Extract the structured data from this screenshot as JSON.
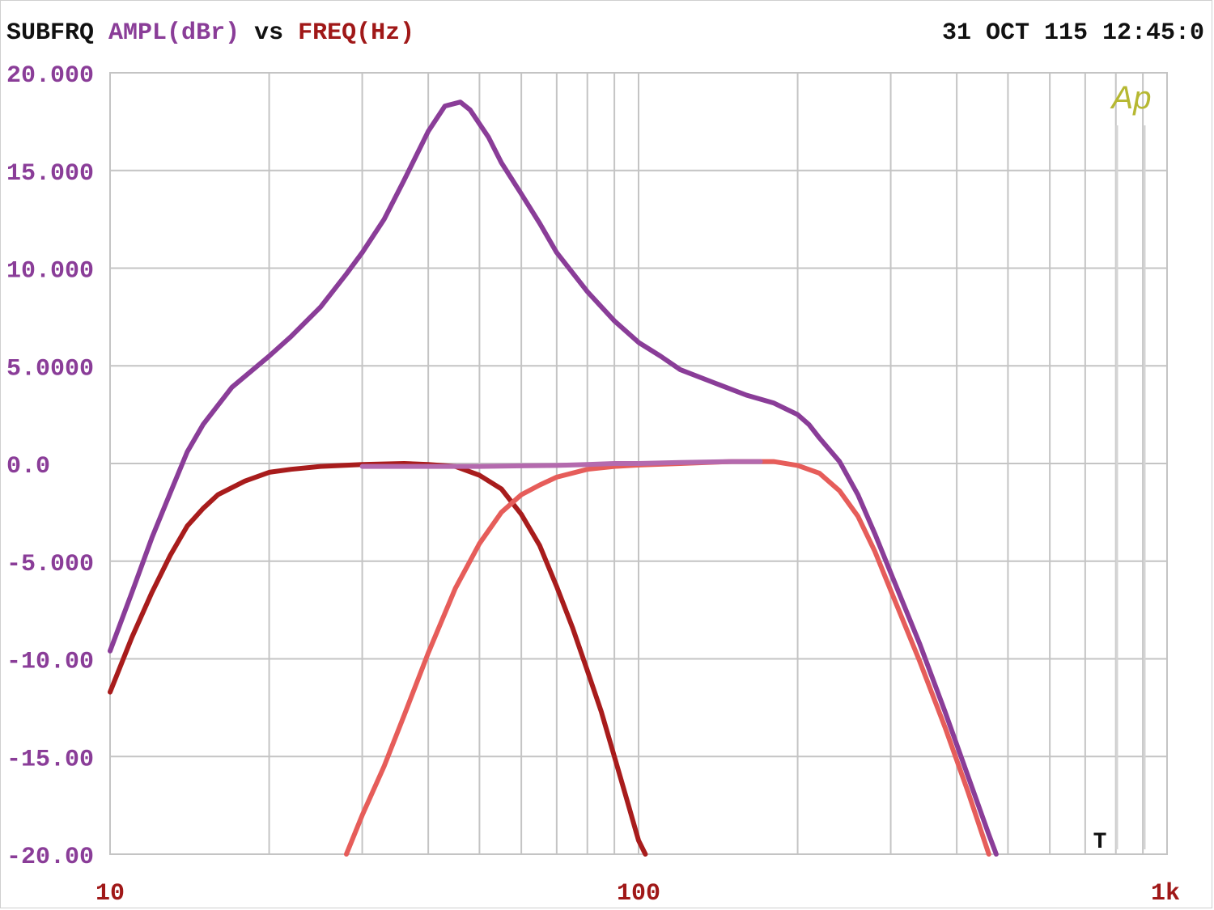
{
  "header": {
    "instrument": "SUBFRQ",
    "y_quantity": "AMPL(dBr)",
    "vs": "vs",
    "x_quantity": "FREQ(Hz)",
    "timestamp": "31 OCT 115 12:45:0"
  },
  "logo": "Ap",
  "marker": "T",
  "colors": {
    "instrument": "#111111",
    "y_quantity": "#8a3d98",
    "x_quantity": "#a01818",
    "y_ticks": "#8a3d98",
    "x_ticks": "#a01818",
    "grid": "#c4c4c4",
    "logo": "#b6b832"
  },
  "chart_data": {
    "type": "line",
    "x_scale": "log",
    "xlim": [
      10,
      1000
    ],
    "ylim": [
      -20,
      20
    ],
    "grid": true,
    "x_tick_labels": [
      {
        "value": 10,
        "label": "10"
      },
      {
        "value": 100,
        "label": "100"
      },
      {
        "value": 1000,
        "label": "1k"
      }
    ],
    "y_tick_labels": [
      {
        "value": 20,
        "label": "20.000"
      },
      {
        "value": 15,
        "label": "15.000"
      },
      {
        "value": 10,
        "label": "10.000"
      },
      {
        "value": 5,
        "label": "5.0000"
      },
      {
        "value": 0,
        "label": "0.0"
      },
      {
        "value": -5,
        "label": "-5.000"
      },
      {
        "value": -10,
        "label": "-10.00"
      },
      {
        "value": -15,
        "label": "-15.00"
      },
      {
        "value": -20,
        "label": "-20.00"
      }
    ],
    "series": [
      {
        "color": "#8a3d98",
        "points": [
          [
            10,
            -9.6
          ],
          [
            11,
            -6.6
          ],
          [
            12,
            -3.8
          ],
          [
            13,
            -1.5
          ],
          [
            14,
            0.6
          ],
          [
            15,
            2
          ],
          [
            17,
            3.9
          ],
          [
            20,
            5.5
          ],
          [
            22,
            6.5
          ],
          [
            25,
            8
          ],
          [
            28,
            9.7
          ],
          [
            30,
            10.8
          ],
          [
            33,
            12.5
          ],
          [
            36,
            14.5
          ],
          [
            40,
            17
          ],
          [
            43,
            18.3
          ],
          [
            46,
            18.5
          ],
          [
            48,
            18.1
          ],
          [
            52,
            16.7
          ],
          [
            55,
            15.4
          ],
          [
            60,
            13.8
          ],
          [
            65,
            12.3
          ],
          [
            70,
            10.8
          ],
          [
            80,
            8.8
          ],
          [
            90,
            7.3
          ],
          [
            100,
            6.2
          ],
          [
            110,
            5.5
          ],
          [
            120,
            4.8
          ],
          [
            140,
            4.1
          ],
          [
            160,
            3.5
          ],
          [
            180,
            3.1
          ],
          [
            200,
            2.5
          ],
          [
            210,
            2
          ],
          [
            220,
            1.3
          ],
          [
            240,
            0.1
          ],
          [
            260,
            -1.6
          ],
          [
            280,
            -3.6
          ],
          [
            300,
            -5.6
          ],
          [
            340,
            -9.2
          ],
          [
            380,
            -12.7
          ],
          [
            420,
            -16
          ],
          [
            460,
            -19
          ],
          [
            475,
            -20
          ]
        ]
      },
      {
        "color": "#a81c1c",
        "points": [
          [
            10,
            -11.7
          ],
          [
            11,
            -8.9
          ],
          [
            12,
            -6.6
          ],
          [
            13,
            -4.7
          ],
          [
            14,
            -3.2
          ],
          [
            15,
            -2.3
          ],
          [
            16,
            -1.6
          ],
          [
            18,
            -0.9
          ],
          [
            20,
            -0.45
          ],
          [
            22,
            -0.3
          ],
          [
            25,
            -0.15
          ],
          [
            30,
            -0.05
          ],
          [
            36,
            0
          ],
          [
            40,
            -0.05
          ],
          [
            45,
            -0.15
          ],
          [
            50,
            -0.6
          ],
          [
            55,
            -1.3
          ],
          [
            60,
            -2.6
          ],
          [
            65,
            -4.2
          ],
          [
            70,
            -6.3
          ],
          [
            75,
            -8.4
          ],
          [
            80,
            -10.6
          ],
          [
            85,
            -12.7
          ],
          [
            90,
            -15
          ],
          [
            95,
            -17.2
          ],
          [
            100,
            -19.3
          ],
          [
            103,
            -20
          ]
        ]
      },
      {
        "color": "#e65d5a",
        "points": [
          [
            28,
            -20
          ],
          [
            30,
            -18
          ],
          [
            33,
            -15.5
          ],
          [
            36,
            -12.9
          ],
          [
            40,
            -9.7
          ],
          [
            45,
            -6.4
          ],
          [
            50,
            -4.1
          ],
          [
            55,
            -2.5
          ],
          [
            60,
            -1.6
          ],
          [
            65,
            -1.1
          ],
          [
            70,
            -0.7
          ],
          [
            80,
            -0.3
          ],
          [
            90,
            -0.15
          ],
          [
            100,
            -0.08
          ],
          [
            120,
            0
          ],
          [
            150,
            0.1
          ],
          [
            180,
            0.1
          ],
          [
            200,
            -0.1
          ],
          [
            220,
            -0.5
          ],
          [
            240,
            -1.4
          ],
          [
            260,
            -2.7
          ],
          [
            280,
            -4.5
          ],
          [
            300,
            -6.5
          ],
          [
            340,
            -10.1
          ],
          [
            380,
            -13.5
          ],
          [
            420,
            -16.8
          ],
          [
            460,
            -20
          ]
        ]
      },
      {
        "color": "#b46aae",
        "points": [
          [
            30,
            -0.15
          ],
          [
            40,
            -0.15
          ],
          [
            50,
            -0.15
          ],
          [
            60,
            -0.12
          ],
          [
            70,
            -0.1
          ],
          [
            80,
            -0.05
          ],
          [
            90,
            0
          ],
          [
            100,
            0
          ],
          [
            120,
            0.05
          ],
          [
            150,
            0.1
          ],
          [
            170,
            0.1
          ]
        ]
      }
    ]
  }
}
